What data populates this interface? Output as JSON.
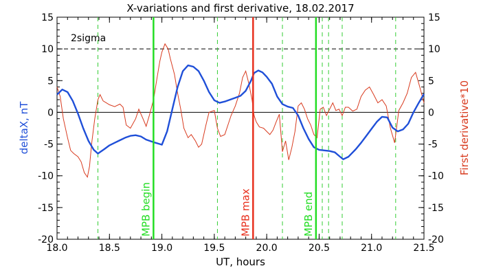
{
  "chart_data": {
    "type": "line",
    "title": "X-variations and first derivative, 18.02.2017",
    "xlabel": "UT, hours",
    "ylabel_left": "deltaX, nT",
    "ylabel_right": "First derivative*10",
    "xlim": [
      18.0,
      21.5
    ],
    "ylim_left": [
      -20,
      15
    ],
    "ylim_right": [
      -20,
      15
    ],
    "x_ticks": [
      18.0,
      18.5,
      19.0,
      19.5,
      20.0,
      20.5,
      21.0,
      21.5
    ],
    "x_tick_labels": [
      "18.0",
      "18.5",
      "19.0",
      "19.5",
      "20.0",
      "20.5",
      "21.0",
      "21.5"
    ],
    "y_ticks": [
      15,
      10,
      5,
      0,
      -5,
      -10,
      -15,
      -20
    ],
    "y_tick_labels": [
      "15",
      "10",
      "5",
      "0",
      "-5",
      "-10",
      "-15",
      "-20"
    ],
    "grid": false,
    "sigma_label": "2sigma",
    "sigma_level": 10,
    "zero_level": 0,
    "colors": {
      "deltaX": "#1f4fd8",
      "derivative": "#d83a1e",
      "mpb_green": "#22dd22",
      "mpb_max": "#e8301e",
      "dashed_green": "#33cc33",
      "text": "#000000"
    },
    "markers": [
      {
        "label": "MPB begin",
        "x": 18.92,
        "kind": "green"
      },
      {
        "label": "MPB max",
        "x": 19.87,
        "kind": "red"
      },
      {
        "label": "MPB end",
        "x": 20.47,
        "kind": "green"
      }
    ],
    "dashed_lines_x": [
      18.39,
      19.53,
      20.15,
      20.53,
      20.59,
      20.72,
      21.23
    ],
    "series": [
      {
        "name": "deltaX, nT",
        "axis": "left",
        "x": [
          18.0,
          18.05,
          18.1,
          18.15,
          18.2,
          18.25,
          18.3,
          18.35,
          18.39,
          18.45,
          18.5,
          18.55,
          18.6,
          18.65,
          18.7,
          18.75,
          18.8,
          18.85,
          18.92,
          18.96,
          19.0,
          19.05,
          19.1,
          19.15,
          19.2,
          19.25,
          19.3,
          19.35,
          19.4,
          19.45,
          19.5,
          19.55,
          19.6,
          19.65,
          19.7,
          19.75,
          19.8,
          19.85,
          19.88,
          19.92,
          19.96,
          20.0,
          20.05,
          20.1,
          20.15,
          20.2,
          20.25,
          20.3,
          20.35,
          20.4,
          20.45,
          20.5,
          20.55,
          20.6,
          20.65,
          20.7,
          20.73,
          20.78,
          20.85,
          20.9,
          20.95,
          21.0,
          21.05,
          21.1,
          21.15,
          21.2,
          21.25,
          21.3,
          21.35,
          21.4,
          21.45,
          21.5
        ],
        "values": [
          2.8,
          3.6,
          3.2,
          1.8,
          -0.2,
          -2.5,
          -4.5,
          -5.9,
          -6.5,
          -5.8,
          -5.2,
          -4.8,
          -4.4,
          -4.0,
          -3.7,
          -3.6,
          -3.8,
          -4.3,
          -4.7,
          -4.9,
          -5.1,
          -3.0,
          0.5,
          4.0,
          6.5,
          7.4,
          7.2,
          6.5,
          5.0,
          3.2,
          1.9,
          1.5,
          1.7,
          2.0,
          2.3,
          2.6,
          3.4,
          5.0,
          6.2,
          6.6,
          6.3,
          5.6,
          4.5,
          2.5,
          1.3,
          0.9,
          0.7,
          -0.5,
          -2.5,
          -4.2,
          -5.5,
          -5.9,
          -6.0,
          -6.1,
          -6.3,
          -7.0,
          -7.4,
          -7.0,
          -5.8,
          -4.8,
          -3.7,
          -2.6,
          -1.5,
          -0.7,
          -0.8,
          -2.4,
          -3.0,
          -2.7,
          -1.8,
          0.0,
          1.5,
          2.9
        ]
      },
      {
        "name": "First derivative*10",
        "axis": "right",
        "x": [
          18.0,
          18.03,
          18.06,
          18.1,
          18.13,
          18.16,
          18.2,
          18.23,
          18.26,
          18.29,
          18.31,
          18.33,
          18.36,
          18.39,
          18.41,
          18.44,
          18.47,
          18.5,
          18.55,
          18.6,
          18.63,
          18.66,
          18.7,
          18.75,
          18.78,
          18.82,
          18.85,
          18.88,
          18.92,
          18.95,
          18.98,
          19.0,
          19.03,
          19.06,
          19.08,
          19.12,
          19.15,
          19.18,
          19.21,
          19.25,
          19.28,
          19.32,
          19.35,
          19.38,
          19.42,
          19.45,
          19.5,
          19.53,
          19.56,
          19.6,
          19.63,
          19.66,
          19.7,
          19.74,
          19.77,
          19.8,
          19.83,
          19.86,
          19.88,
          19.9,
          19.93,
          19.97,
          20.0,
          20.03,
          20.06,
          20.09,
          20.12,
          20.15,
          20.18,
          20.21,
          20.24,
          20.27,
          20.3,
          20.33,
          20.36,
          20.39,
          20.42,
          20.45,
          20.48,
          20.51,
          20.54,
          20.57,
          20.6,
          20.63,
          20.66,
          20.69,
          20.72,
          20.75,
          20.78,
          20.82,
          20.86,
          20.9,
          20.94,
          20.98,
          21.02,
          21.06,
          21.1,
          21.14,
          21.18,
          21.22,
          21.26,
          21.3,
          21.34,
          21.38,
          21.42,
          21.46,
          21.5
        ],
        "values": [
          4.0,
          2.5,
          -1.0,
          -4.0,
          -6.0,
          -6.5,
          -7.0,
          -7.8,
          -9.5,
          -10.2,
          -8.5,
          -5.0,
          -1.0,
          2.0,
          2.8,
          1.8,
          1.5,
          1.2,
          0.9,
          1.3,
          0.8,
          -2.0,
          -2.5,
          -1.0,
          0.5,
          -1.0,
          -2.2,
          -0.5,
          2.0,
          5.0,
          8.0,
          9.5,
          10.8,
          10.0,
          8.5,
          6.0,
          3.0,
          0.5,
          -2.5,
          -4.0,
          -3.5,
          -4.5,
          -5.5,
          -5.0,
          -2.0,
          0.0,
          0.3,
          -2.5,
          -3.8,
          -3.5,
          -2.0,
          -0.5,
          1.0,
          3.0,
          5.5,
          6.5,
          4.5,
          2.0,
          -0.5,
          -1.5,
          -2.3,
          -2.5,
          -3.0,
          -3.5,
          -2.8,
          -1.5,
          -0.3,
          -6.2,
          -4.5,
          -7.5,
          -5.5,
          -3.0,
          1.0,
          1.5,
          0.5,
          -1.0,
          -2.0,
          -3.5,
          -4.0,
          0.5,
          0.8,
          -0.5,
          0.5,
          1.5,
          0.3,
          0.5,
          -0.5,
          0.8,
          0.8,
          0.2,
          0.5,
          2.5,
          3.5,
          4.0,
          2.8,
          1.5,
          2.0,
          1.0,
          -2.5,
          -4.8,
          0.3,
          1.5,
          3.0,
          5.5,
          6.3,
          4.0,
          1.5
        ]
      }
    ]
  }
}
